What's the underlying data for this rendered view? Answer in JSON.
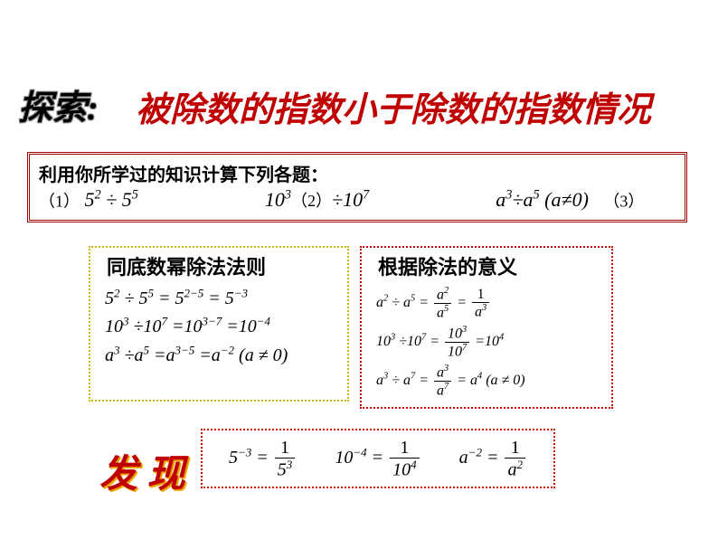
{
  "explore_label": "探索:",
  "subtitle": "被除数的指数小于除数的指数情况",
  "instruction": "利用你所学过的知识计算下列各题：",
  "problems": {
    "p1_label": "（1）",
    "p1": "5² ÷ 5⁵",
    "p2_label": "（2）",
    "p2_pre": "10",
    "p2_mid": "÷10",
    "p3": "a³÷a⁵ (a≠0)",
    "p3_label": "（3）"
  },
  "left_panel_title": "同底数幂除法法则",
  "left_eqs": {
    "e1": "5² ÷ 5⁵ = 5²⁻⁵ = 5⁻³",
    "e2": "10³ ÷10⁷ =10³⁻⁷ =10⁻⁴",
    "e3": "a³ ÷a⁵ =a³⁻⁵ =a⁻² (a ≠ 0)"
  },
  "right_panel_title": "根据除法的意义",
  "discover_label": "发 现",
  "colors": {
    "red": "#c00000",
    "yellow_border": "#d4b800",
    "red_border": "#a00000"
  }
}
